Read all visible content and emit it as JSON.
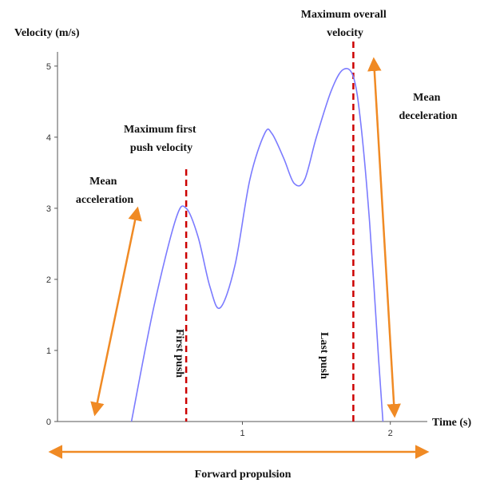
{
  "chart_data": {
    "type": "line",
    "xlabel": "Time (s)",
    "ylabel": "Velocity (m/s)",
    "xlim": [
      -0.25,
      2.25
    ],
    "ylim": [
      0,
      5.2
    ],
    "x_ticks": [
      1,
      2
    ],
    "y_ticks": [
      0,
      1,
      2,
      3,
      4,
      5
    ],
    "grid": false,
    "series": [
      {
        "color": "#7b7bff",
        "x": [
          0.25,
          0.4,
          0.55,
          0.62,
          0.7,
          0.78,
          0.85,
          0.95,
          1.05,
          1.15,
          1.2,
          1.28,
          1.35,
          1.42,
          1.5,
          1.6,
          1.68,
          1.75,
          1.8,
          1.86,
          1.92,
          1.95
        ],
        "y": [
          0.0,
          1.6,
          2.85,
          3.0,
          2.6,
          1.9,
          1.6,
          2.2,
          3.4,
          4.05,
          4.05,
          3.7,
          3.35,
          3.4,
          4.0,
          4.65,
          4.95,
          4.85,
          4.2,
          2.8,
          0.9,
          0.0
        ]
      }
    ],
    "vlines": [
      {
        "x": 0.62,
        "color": "#cc0000",
        "label": "First push"
      },
      {
        "x": 1.75,
        "color": "#cc0000",
        "label": "Last push"
      }
    ],
    "annotations": {
      "max_first": [
        "Maximum first",
        "push velocity"
      ],
      "max_overall": [
        "Maximum overall",
        "velocity"
      ],
      "mean_acc": [
        "Mean",
        "acceleration"
      ],
      "mean_dec": [
        "Mean",
        "deceleration"
      ],
      "forward": "Forward propulsion"
    },
    "colors": {
      "arrow": "#f08a24",
      "curve": "#7b7bff",
      "dashed": "#cc0000"
    }
  }
}
